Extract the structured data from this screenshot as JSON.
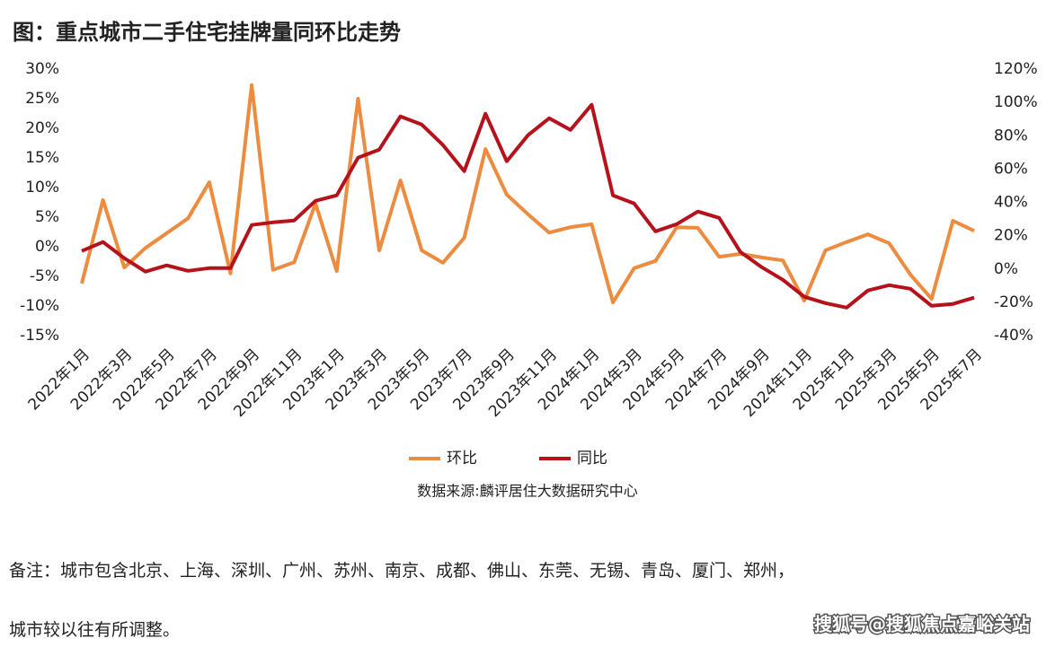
{
  "chart_data": {
    "type": "line",
    "title": "图：重点城市二手住宅挂牌量同环比走势",
    "categories": [
      "2022年1月",
      null,
      "2022年3月",
      null,
      "2022年5月",
      null,
      "2022年7月",
      null,
      "2022年9月",
      null,
      "2022年11月",
      null,
      "2023年1月",
      null,
      "2023年3月",
      null,
      "2023年5月",
      null,
      "2023年7月",
      null,
      "2023年9月",
      null,
      "2023年11月",
      null,
      "2024年1月",
      null,
      "2024年3月",
      null,
      "2024年5月",
      null,
      "2024年7月",
      null,
      "2024年9月",
      null,
      "2024年11月",
      null,
      "2025年1月",
      null,
      "2025年3月",
      null,
      "2025年5月",
      null,
      "2025年7月"
    ],
    "series": [
      {
        "name": "环比",
        "color": "#ed8b3f",
        "values": [
          -6.2,
          7.9,
          -3.5,
          -0.2,
          2.3,
          4.8,
          10.9,
          -4.5,
          27.3,
          -3.9,
          -2.6,
          7.3,
          -4.1,
          25.0,
          -0.6,
          11.2,
          -0.6,
          -2.7,
          1.5,
          16.5,
          8.8,
          5.5,
          2.4,
          3.3,
          3.8,
          -9.4,
          -3.6,
          -2.4,
          3.3,
          3.2,
          -1.7,
          -1.2,
          -1.8,
          -2.3,
          -9.1,
          -0.6,
          0.8,
          2.1,
          0.6,
          -4.7,
          -8.8,
          4.4,
          2.7
        ]
      },
      {
        "name": "同比",
        "color": "#b5121b",
        "axis": "y2",
        "values": [
          10.8,
          16.2,
          6.5,
          -1.6,
          2.2,
          -1.1,
          0.5,
          0.5,
          26.4,
          28.0,
          29.1,
          40.9,
          44.2,
          66.8,
          71.7,
          91.6,
          86.7,
          74.4,
          58.7,
          93.2,
          64.7,
          80.3,
          90.5,
          83.5,
          98.6,
          44.2,
          39.3,
          22.6,
          26.9,
          34.5,
          30.7,
          10.2,
          1.1,
          -6.5,
          -16.7,
          -20.5,
          -23.2,
          -12.9,
          -9.7,
          -11.9,
          -22.1,
          -21.0,
          -17.2
        ]
      }
    ],
    "ylim": [
      -15,
      30
    ],
    "yticks": [
      {
        "value": -15,
        "label": "-15%"
      },
      {
        "value": -10,
        "label": "-10%"
      },
      {
        "value": -5,
        "label": "-5%"
      },
      {
        "value": 0,
        "label": "0%"
      },
      {
        "value": 5,
        "label": "5%"
      },
      {
        "value": 10,
        "label": "10%"
      },
      {
        "value": 15,
        "label": "15%"
      },
      {
        "value": 20,
        "label": "20%"
      },
      {
        "value": 25,
        "label": "25%"
      },
      {
        "value": 30,
        "label": "30%"
      }
    ],
    "y2lim": [
      -40,
      120
    ],
    "y2ticks": [
      {
        "value": -40,
        "label": "-40%"
      },
      {
        "value": -20,
        "label": "-20%"
      },
      {
        "value": 0,
        "label": "0%"
      },
      {
        "value": 20,
        "label": "20%"
      },
      {
        "value": 40,
        "label": "40%"
      },
      {
        "value": 60,
        "label": "60%"
      },
      {
        "value": 80,
        "label": "80%"
      },
      {
        "value": 100,
        "label": "100%"
      },
      {
        "value": 120,
        "label": "120%"
      }
    ],
    "grid": false,
    "legend": "bottom",
    "source": "数据来源:麟评居住大数据研究中心"
  },
  "notes": [
    "备注：城市包含北京、上海、深圳、广州、苏州、南京、成都、佛山、东莞、无锡、青岛、厦门、郑州，",
    "城市较以往有所调整。"
  ],
  "watermark": "搜狐号@搜狐焦点嘉峪关站"
}
